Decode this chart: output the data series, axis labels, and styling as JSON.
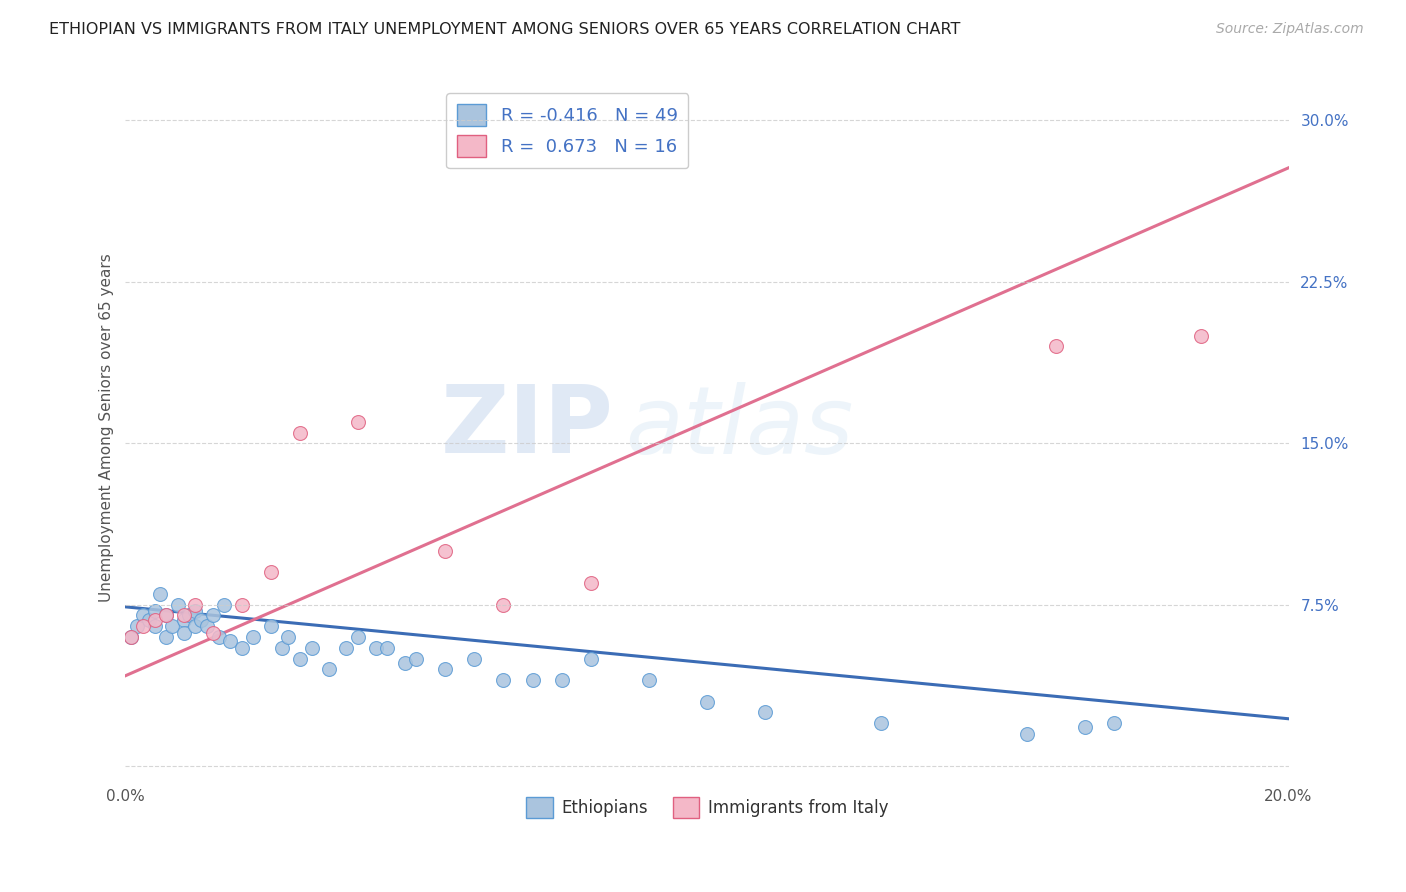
{
  "title": "ETHIOPIAN VS IMMIGRANTS FROM ITALY UNEMPLOYMENT AMONG SENIORS OVER 65 YEARS CORRELATION CHART",
  "source": "Source: ZipAtlas.com",
  "ylabel": "Unemployment Among Seniors over 65 years",
  "xlim": [
    0.0,
    0.2
  ],
  "ylim": [
    -0.005,
    0.32
  ],
  "yticks": [
    0.0,
    0.075,
    0.15,
    0.225,
    0.3
  ],
  "yticklabels": [
    "",
    "7.5%",
    "15.0%",
    "22.5%",
    "30.0%"
  ],
  "xticks": [
    0.0,
    0.025,
    0.05,
    0.075,
    0.1,
    0.125,
    0.15,
    0.175,
    0.2
  ],
  "xticklabels": [
    "0.0%",
    "",
    "",
    "",
    "",
    "",
    "",
    "",
    "20.0%"
  ],
  "legend_r1": "R = -0.416",
  "legend_n1": "N = 49",
  "legend_r2": "R =  0.673",
  "legend_n2": "N = 16",
  "color_ethiopian_fill": "#aac4de",
  "color_ethiopian_edge": "#5b9bd5",
  "color_italy_fill": "#f4b8c8",
  "color_italy_edge": "#e06080",
  "color_line_ethiopian": "#3b6cb5",
  "color_line_italy": "#e07090",
  "watermark_zip": "ZIP",
  "watermark_atlas": "atlas",
  "background_color": "#ffffff",
  "grid_color": "#cccccc",
  "ethiopians_x": [
    0.001,
    0.002,
    0.003,
    0.004,
    0.005,
    0.005,
    0.006,
    0.007,
    0.007,
    0.008,
    0.009,
    0.01,
    0.01,
    0.011,
    0.012,
    0.012,
    0.013,
    0.014,
    0.015,
    0.016,
    0.017,
    0.018,
    0.02,
    0.022,
    0.025,
    0.027,
    0.028,
    0.03,
    0.032,
    0.035,
    0.038,
    0.04,
    0.043,
    0.045,
    0.048,
    0.05,
    0.055,
    0.06,
    0.065,
    0.07,
    0.075,
    0.08,
    0.09,
    0.1,
    0.11,
    0.13,
    0.155,
    0.165,
    0.17
  ],
  "ethiopians_y": [
    0.06,
    0.065,
    0.07,
    0.068,
    0.072,
    0.065,
    0.08,
    0.07,
    0.06,
    0.065,
    0.075,
    0.068,
    0.062,
    0.07,
    0.072,
    0.065,
    0.068,
    0.065,
    0.07,
    0.06,
    0.075,
    0.058,
    0.055,
    0.06,
    0.065,
    0.055,
    0.06,
    0.05,
    0.055,
    0.045,
    0.055,
    0.06,
    0.055,
    0.055,
    0.048,
    0.05,
    0.045,
    0.05,
    0.04,
    0.04,
    0.04,
    0.05,
    0.04,
    0.03,
    0.025,
    0.02,
    0.015,
    0.018,
    0.02
  ],
  "italy_x": [
    0.001,
    0.003,
    0.005,
    0.007,
    0.01,
    0.012,
    0.015,
    0.02,
    0.025,
    0.03,
    0.04,
    0.055,
    0.065,
    0.08,
    0.16,
    0.185
  ],
  "italy_y": [
    0.06,
    0.065,
    0.068,
    0.07,
    0.07,
    0.075,
    0.062,
    0.075,
    0.09,
    0.155,
    0.16,
    0.1,
    0.075,
    0.085,
    0.195,
    0.2
  ],
  "trend_eth_x0": 0.0,
  "trend_eth_x1": 0.2,
  "trend_eth_y0": 0.074,
  "trend_eth_y1": 0.022,
  "trend_ita_x0": 0.0,
  "trend_ita_x1": 0.2,
  "trend_ita_y0": 0.042,
  "trend_ita_y1": 0.278
}
